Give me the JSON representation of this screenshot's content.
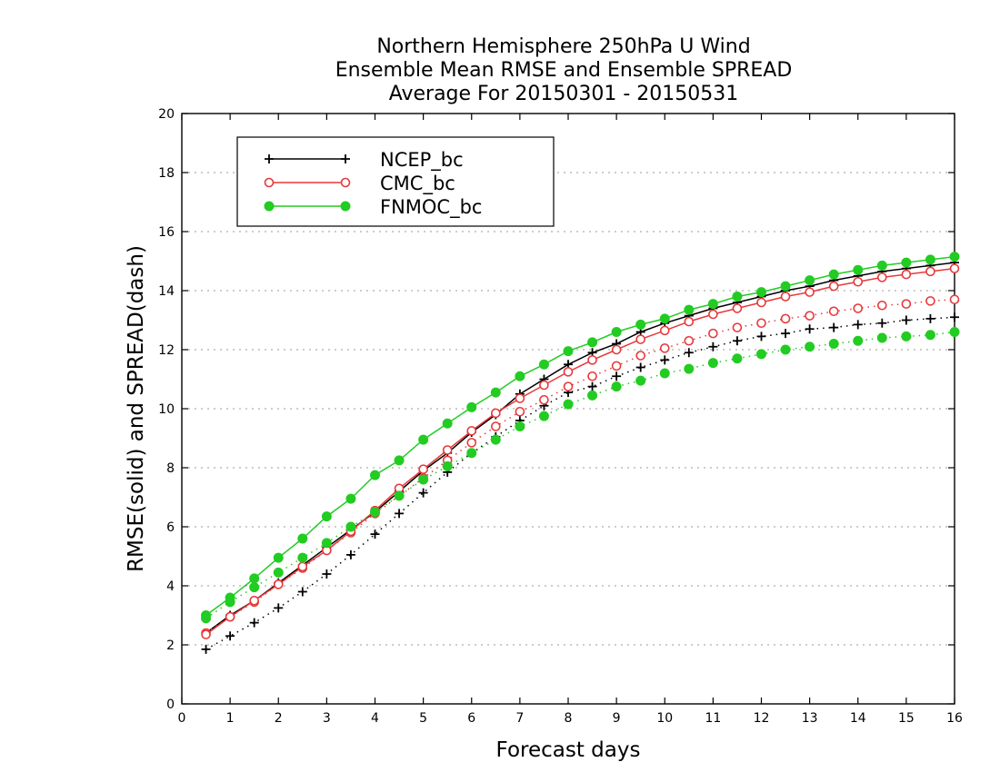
{
  "chart_data": {
    "type": "line",
    "title": [
      "Northern Hemisphere 250hPa U Wind",
      "Ensemble Mean RMSE and Ensemble SPREAD",
      "Average For 20150301 - 20150531"
    ],
    "xlabel": "Forecast days",
    "ylabel": "RMSE(solid) and SPREAD(dash)",
    "xlim": [
      0,
      16
    ],
    "ylim": [
      0,
      20
    ],
    "xticks": [
      0,
      1,
      2,
      3,
      4,
      5,
      6,
      7,
      8,
      9,
      10,
      11,
      12,
      13,
      14,
      15,
      16
    ],
    "yticks": [
      0,
      2,
      4,
      6,
      8,
      10,
      12,
      14,
      16,
      18,
      20
    ],
    "grid": true,
    "legend_position": "top-left",
    "x": [
      0.5,
      1,
      1.5,
      2,
      2.5,
      3,
      3.5,
      4,
      4.5,
      5,
      5.5,
      6,
      6.5,
      7,
      7.5,
      8,
      8.5,
      9,
      9.5,
      10,
      10.5,
      11,
      11.5,
      12,
      12.5,
      13,
      13.5,
      14,
      14.5,
      15,
      15.5,
      16
    ],
    "series": [
      {
        "name": "NCEP_bc",
        "color": "#000000",
        "marker": "plus",
        "rmse": [
          2.4,
          3.0,
          3.5,
          4.1,
          4.7,
          5.3,
          5.9,
          6.5,
          7.2,
          7.9,
          8.5,
          9.2,
          9.8,
          10.5,
          11.0,
          11.5,
          11.9,
          12.2,
          12.6,
          12.9,
          13.15,
          13.4,
          13.6,
          13.8,
          14.0,
          14.15,
          14.35,
          14.5,
          14.65,
          14.75,
          14.85,
          14.95
        ],
        "spread": [
          1.85,
          2.3,
          2.75,
          3.25,
          3.8,
          4.4,
          5.05,
          5.75,
          6.45,
          7.15,
          7.85,
          8.5,
          9.05,
          9.6,
          10.1,
          10.55,
          10.75,
          11.1,
          11.4,
          11.65,
          11.9,
          12.1,
          12.3,
          12.45,
          12.55,
          12.7,
          12.75,
          12.85,
          12.9,
          13.0,
          13.05,
          13.1
        ]
      },
      {
        "name": "CMC_bc",
        "color": "#e8383a",
        "marker": "open-circle",
        "rmse": [
          2.35,
          2.95,
          3.5,
          4.05,
          4.65,
          5.2,
          5.85,
          6.55,
          7.3,
          7.95,
          8.6,
          9.25,
          9.85,
          10.35,
          10.8,
          11.25,
          11.65,
          12.0,
          12.35,
          12.65,
          12.95,
          13.2,
          13.4,
          13.6,
          13.8,
          13.95,
          14.15,
          14.3,
          14.45,
          14.55,
          14.65,
          14.75
        ],
        "spread": [
          2.4,
          2.95,
          3.45,
          4.05,
          4.6,
          5.2,
          5.8,
          6.45,
          7.05,
          7.65,
          8.25,
          8.85,
          9.4,
          9.9,
          10.3,
          10.75,
          11.1,
          11.45,
          11.8,
          12.05,
          12.3,
          12.55,
          12.75,
          12.9,
          13.05,
          13.15,
          13.3,
          13.4,
          13.5,
          13.55,
          13.65,
          13.7
        ]
      },
      {
        "name": "FNMOC_bc",
        "color": "#22cc22",
        "marker": "filled-circle",
        "rmse": [
          3.0,
          3.6,
          4.25,
          4.95,
          5.6,
          6.35,
          6.95,
          7.75,
          8.25,
          8.95,
          9.5,
          10.05,
          10.55,
          11.1,
          11.5,
          11.95,
          12.25,
          12.6,
          12.85,
          13.05,
          13.35,
          13.55,
          13.8,
          13.95,
          14.15,
          14.35,
          14.55,
          14.7,
          14.85,
          14.95,
          15.05,
          15.15
        ],
        "spread": [
          2.9,
          3.45,
          3.95,
          4.45,
          4.95,
          5.45,
          6.0,
          6.5,
          7.05,
          7.6,
          8.05,
          8.5,
          8.95,
          9.4,
          9.75,
          10.15,
          10.45,
          10.75,
          10.95,
          11.2,
          11.35,
          11.55,
          11.7,
          11.85,
          12.0,
          12.1,
          12.2,
          12.3,
          12.4,
          12.45,
          12.5,
          12.6
        ]
      }
    ]
  }
}
